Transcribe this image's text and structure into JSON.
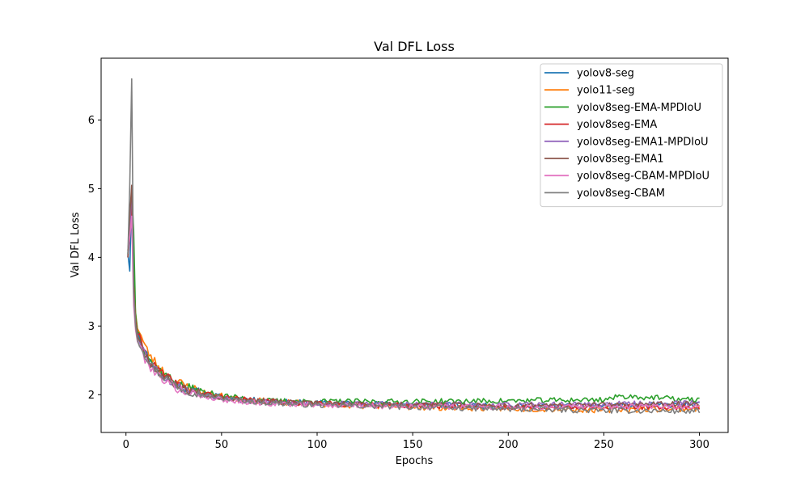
{
  "chart_data": {
    "type": "line",
    "title": "Val DFL Loss",
    "xlabel": "Epochs",
    "ylabel": "Val DFL Loss",
    "xlim": [
      -13,
      315
    ],
    "ylim": [
      1.45,
      6.9
    ],
    "x_ticks": [
      0,
      50,
      100,
      150,
      200,
      250,
      300
    ],
    "y_ticks": [
      2,
      3,
      4,
      5,
      6
    ],
    "grid": false,
    "legend_position": "top-right",
    "epochs": 300,
    "series": [
      {
        "name": "yolov8-seg",
        "color": "#1f77b4",
        "anchors": [
          [
            1,
            4.05
          ],
          [
            2,
            3.8
          ],
          [
            3,
            4.9
          ],
          [
            4,
            3.6
          ],
          [
            5,
            3.1
          ],
          [
            6,
            2.95
          ],
          [
            8,
            2.75
          ],
          [
            10,
            2.62
          ],
          [
            13,
            2.48
          ],
          [
            16,
            2.38
          ],
          [
            20,
            2.28
          ],
          [
            25,
            2.18
          ],
          [
            30,
            2.1
          ],
          [
            40,
            2.02
          ],
          [
            50,
            1.97
          ],
          [
            60,
            1.94
          ],
          [
            75,
            1.9
          ],
          [
            100,
            1.88
          ],
          [
            150,
            1.86
          ],
          [
            200,
            1.83
          ],
          [
            250,
            1.84
          ],
          [
            300,
            1.85
          ]
        ],
        "noise": 0.04,
        "seed": 11
      },
      {
        "name": "yolo11-seg",
        "color": "#ff7f0e",
        "anchors": [
          [
            1,
            4.1
          ],
          [
            2,
            4.4
          ],
          [
            3,
            4.7
          ],
          [
            4,
            3.7
          ],
          [
            5,
            3.2
          ],
          [
            6,
            3.0
          ],
          [
            8,
            2.85
          ],
          [
            10,
            2.7
          ],
          [
            13,
            2.55
          ],
          [
            16,
            2.45
          ],
          [
            20,
            2.33
          ],
          [
            25,
            2.22
          ],
          [
            30,
            2.14
          ],
          [
            40,
            2.04
          ],
          [
            50,
            1.98
          ],
          [
            60,
            1.94
          ],
          [
            75,
            1.9
          ],
          [
            100,
            1.86
          ],
          [
            150,
            1.82
          ],
          [
            200,
            1.8
          ],
          [
            250,
            1.78
          ],
          [
            300,
            1.8
          ]
        ],
        "noise": 0.045,
        "seed": 23
      },
      {
        "name": "yolov8seg-EMA-MPDIoU",
        "color": "#2ca02c",
        "anchors": [
          [
            1,
            4.05
          ],
          [
            2,
            4.5
          ],
          [
            3,
            4.95
          ],
          [
            4,
            4.4
          ],
          [
            5,
            3.2
          ],
          [
            6,
            2.95
          ],
          [
            8,
            2.8
          ],
          [
            10,
            2.65
          ],
          [
            13,
            2.5
          ],
          [
            16,
            2.4
          ],
          [
            20,
            2.3
          ],
          [
            25,
            2.2
          ],
          [
            30,
            2.12
          ],
          [
            40,
            2.04
          ],
          [
            50,
            1.99
          ],
          [
            60,
            1.95
          ],
          [
            75,
            1.91
          ],
          [
            100,
            1.9
          ],
          [
            150,
            1.9
          ],
          [
            200,
            1.91
          ],
          [
            250,
            1.93
          ],
          [
            260,
            1.98
          ],
          [
            280,
            1.95
          ],
          [
            300,
            1.92
          ]
        ],
        "noise": 0.04,
        "seed": 37
      },
      {
        "name": "yolov8seg-EMA",
        "color": "#d62728",
        "anchors": [
          [
            1,
            4.0
          ],
          [
            2,
            4.3
          ],
          [
            3,
            4.8
          ],
          [
            4,
            3.6
          ],
          [
            5,
            3.1
          ],
          [
            6,
            2.9
          ],
          [
            8,
            2.75
          ],
          [
            10,
            2.62
          ],
          [
            13,
            2.48
          ],
          [
            16,
            2.38
          ],
          [
            20,
            2.28
          ],
          [
            25,
            2.18
          ],
          [
            30,
            2.1
          ],
          [
            40,
            2.02
          ],
          [
            50,
            1.97
          ],
          [
            60,
            1.93
          ],
          [
            75,
            1.9
          ],
          [
            100,
            1.87
          ],
          [
            150,
            1.84
          ],
          [
            200,
            1.82
          ],
          [
            250,
            1.82
          ],
          [
            300,
            1.82
          ]
        ],
        "noise": 0.04,
        "seed": 41
      },
      {
        "name": "yolov8seg-EMA1-MPDIoU",
        "color": "#9467bd",
        "anchors": [
          [
            1,
            4.02
          ],
          [
            2,
            4.4
          ],
          [
            3,
            5.0
          ],
          [
            4,
            3.5
          ],
          [
            5,
            3.05
          ],
          [
            6,
            2.9
          ],
          [
            8,
            2.75
          ],
          [
            10,
            2.6
          ],
          [
            13,
            2.46
          ],
          [
            16,
            2.36
          ],
          [
            20,
            2.26
          ],
          [
            25,
            2.16
          ],
          [
            30,
            2.08
          ],
          [
            40,
            2.0
          ],
          [
            50,
            1.96
          ],
          [
            60,
            1.92
          ],
          [
            75,
            1.89
          ],
          [
            100,
            1.87
          ],
          [
            150,
            1.86
          ],
          [
            200,
            1.85
          ],
          [
            250,
            1.86
          ],
          [
            300,
            1.88
          ]
        ],
        "noise": 0.04,
        "seed": 53
      },
      {
        "name": "yolov8seg-EMA1",
        "color": "#8c564b",
        "anchors": [
          [
            1,
            4.0
          ],
          [
            2,
            4.6
          ],
          [
            3,
            5.05
          ],
          [
            4,
            3.55
          ],
          [
            5,
            3.05
          ],
          [
            6,
            2.88
          ],
          [
            8,
            2.73
          ],
          [
            10,
            2.6
          ],
          [
            13,
            2.46
          ],
          [
            16,
            2.36
          ],
          [
            20,
            2.26
          ],
          [
            25,
            2.17
          ],
          [
            30,
            2.09
          ],
          [
            40,
            2.01
          ],
          [
            50,
            1.96
          ],
          [
            60,
            1.93
          ],
          [
            75,
            1.9
          ],
          [
            100,
            1.87
          ],
          [
            150,
            1.85
          ],
          [
            200,
            1.84
          ],
          [
            250,
            1.85
          ],
          [
            300,
            1.87
          ]
        ],
        "noise": 0.04,
        "seed": 67
      },
      {
        "name": "yolov8seg-CBAM-MPDIoU",
        "color": "#e377c2",
        "anchors": [
          [
            1,
            4.1
          ],
          [
            2,
            4.3
          ],
          [
            3,
            4.6
          ],
          [
            4,
            3.3
          ],
          [
            5,
            2.95
          ],
          [
            6,
            2.8
          ],
          [
            8,
            2.65
          ],
          [
            10,
            2.52
          ],
          [
            13,
            2.4
          ],
          [
            16,
            2.3
          ],
          [
            20,
            2.22
          ],
          [
            25,
            2.12
          ],
          [
            30,
            2.05
          ],
          [
            40,
            1.98
          ],
          [
            50,
            1.93
          ],
          [
            60,
            1.9
          ],
          [
            75,
            1.87
          ],
          [
            100,
            1.85
          ],
          [
            150,
            1.83
          ],
          [
            200,
            1.82
          ],
          [
            250,
            1.82
          ],
          [
            300,
            1.83
          ]
        ],
        "noise": 0.04,
        "seed": 79
      },
      {
        "name": "yolov8seg-CBAM",
        "color": "#7f7f7f",
        "anchors": [
          [
            1,
            4.05
          ],
          [
            2,
            5.05
          ],
          [
            3,
            6.6
          ],
          [
            4,
            3.5
          ],
          [
            5,
            3.0
          ],
          [
            6,
            2.82
          ],
          [
            8,
            2.7
          ],
          [
            10,
            2.58
          ],
          [
            13,
            2.45
          ],
          [
            16,
            2.35
          ],
          [
            20,
            2.25
          ],
          [
            25,
            2.16
          ],
          [
            30,
            2.08
          ],
          [
            40,
            2.0
          ],
          [
            50,
            1.95
          ],
          [
            60,
            1.92
          ],
          [
            75,
            1.88
          ],
          [
            100,
            1.85
          ],
          [
            150,
            1.82
          ],
          [
            200,
            1.79
          ],
          [
            250,
            1.77
          ],
          [
            300,
            1.76
          ]
        ],
        "noise": 0.04,
        "seed": 97
      }
    ]
  }
}
